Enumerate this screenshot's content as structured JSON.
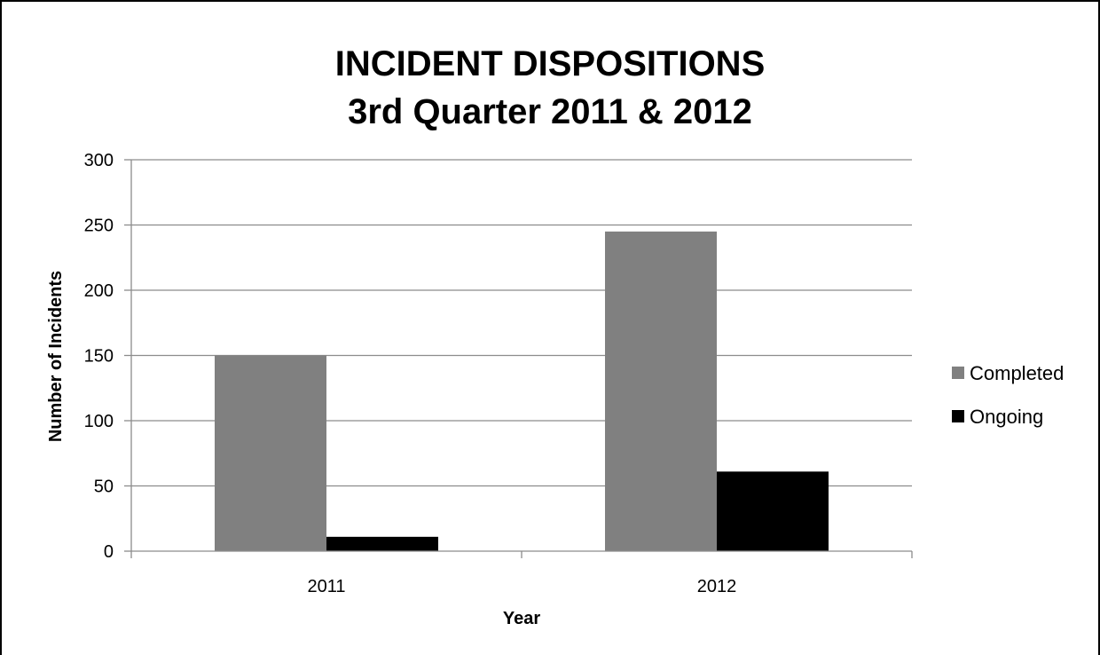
{
  "chart_data": {
    "type": "bar",
    "title": [
      "INCIDENT DISPOSITIONS",
      "3rd Quarter 2011 & 2012"
    ],
    "xlabel": "Year",
    "ylabel": "Number of Incidents",
    "categories": [
      "2011",
      "2012"
    ],
    "series": [
      {
        "name": "Completed",
        "values": [
          150,
          245
        ],
        "color": "#808080"
      },
      {
        "name": "Ongoing",
        "values": [
          11,
          61
        ],
        "color": "#000000"
      }
    ],
    "ylim": [
      0,
      300
    ],
    "yticks": [
      0,
      50,
      100,
      150,
      200,
      250,
      300
    ],
    "grid": true,
    "legend": "right"
  }
}
